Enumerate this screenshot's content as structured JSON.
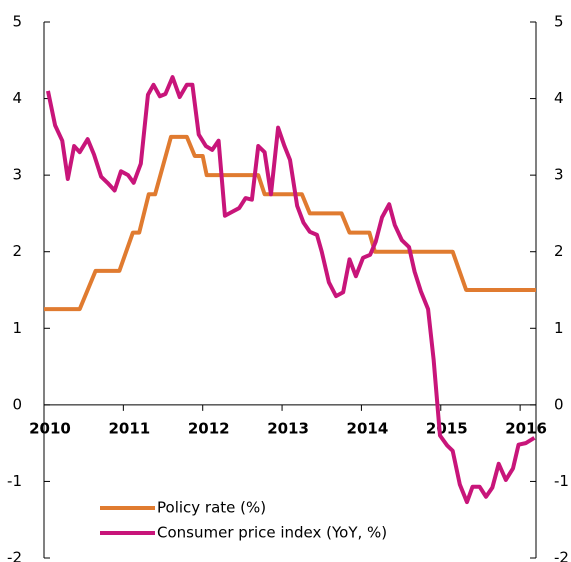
{
  "chart_data": {
    "type": "line",
    "xlim": [
      2010,
      2016.2
    ],
    "xticks": [
      2010,
      2011,
      2012,
      2013,
      2014,
      2015,
      2016
    ],
    "ylim": [
      -2,
      5
    ],
    "yticks": [
      -2,
      -1,
      0,
      1,
      2,
      3,
      4,
      5
    ],
    "y2lim": [
      -2,
      5
    ],
    "y2ticks": [
      -2,
      -1,
      0,
      1,
      2,
      3,
      4,
      5
    ],
    "legend": "lower left",
    "series": [
      {
        "name": "Policy rate (%)",
        "color": "#e07b30",
        "x": [
          2010,
          2010.45,
          2010.65,
          2010.95,
          2011.12,
          2011.2,
          2011.32,
          2011.4,
          2011.6,
          2011.8,
          2011.9,
          2012.0,
          2012.05,
          2012.7,
          2012.78,
          2013.25,
          2013.35,
          2013.75,
          2013.85,
          2014.1,
          2014.17,
          2015.15,
          2015.32,
          2016.2
        ],
        "values": [
          1.25,
          1.25,
          1.75,
          1.75,
          2.25,
          2.25,
          2.75,
          2.75,
          3.5,
          3.5,
          3.25,
          3.25,
          3.0,
          3.0,
          2.75,
          2.75,
          2.5,
          2.5,
          2.25,
          2.25,
          2.0,
          2.0,
          1.5,
          1.5
        ]
      },
      {
        "name": "Consumer price index (YoY, %)",
        "color": "#c8157a",
        "x": [
          2010.05,
          2010.14,
          2010.23,
          2010.3,
          2010.38,
          2010.45,
          2010.55,
          2010.63,
          2010.72,
          2010.8,
          2010.89,
          2010.97,
          2011.06,
          2011.13,
          2011.22,
          2011.31,
          2011.38,
          2011.46,
          2011.53,
          2011.62,
          2011.71,
          2011.8,
          2011.87,
          2011.95,
          2012.04,
          2012.12,
          2012.2,
          2012.28,
          2012.37,
          2012.46,
          2012.54,
          2012.62,
          2012.7,
          2012.78,
          2012.86,
          2012.95,
          2013.03,
          2013.1,
          2013.19,
          2013.27,
          2013.35,
          2013.44,
          2013.5,
          2013.59,
          2013.68,
          2013.77,
          2013.85,
          2013.93,
          2014.02,
          2014.11,
          2014.18,
          2014.26,
          2014.35,
          2014.42,
          2014.51,
          2014.6,
          2014.67,
          2014.75,
          2014.84,
          2014.91,
          2014.99,
          2015.08,
          2015.15,
          2015.24,
          2015.33,
          2015.4,
          2015.49,
          2015.57,
          2015.65,
          2015.73,
          2015.82,
          2015.91,
          2015.98,
          2016.07,
          2016.18
        ],
        "values": [
          4.1,
          3.65,
          3.45,
          2.95,
          3.38,
          3.3,
          3.47,
          3.27,
          2.98,
          2.9,
          2.8,
          3.05,
          3.0,
          2.9,
          3.15,
          4.05,
          4.18,
          4.03,
          4.06,
          4.28,
          4.02,
          4.18,
          4.18,
          3.53,
          3.38,
          3.33,
          3.45,
          2.47,
          2.52,
          2.57,
          2.7,
          2.68,
          3.38,
          3.3,
          2.75,
          3.62,
          3.38,
          3.2,
          2.6,
          2.38,
          2.26,
          2.22,
          2.0,
          1.6,
          1.42,
          1.47,
          1.9,
          1.68,
          1.92,
          1.96,
          2.13,
          2.45,
          2.62,
          2.35,
          2.15,
          2.06,
          1.74,
          1.48,
          1.25,
          0.59,
          -0.4,
          -0.53,
          -0.6,
          -1.04,
          -1.27,
          -1.07,
          -1.07,
          -1.2,
          -1.08,
          -0.77,
          -0.98,
          -0.83,
          -0.52,
          -0.5,
          -0.43
        ]
      }
    ]
  }
}
